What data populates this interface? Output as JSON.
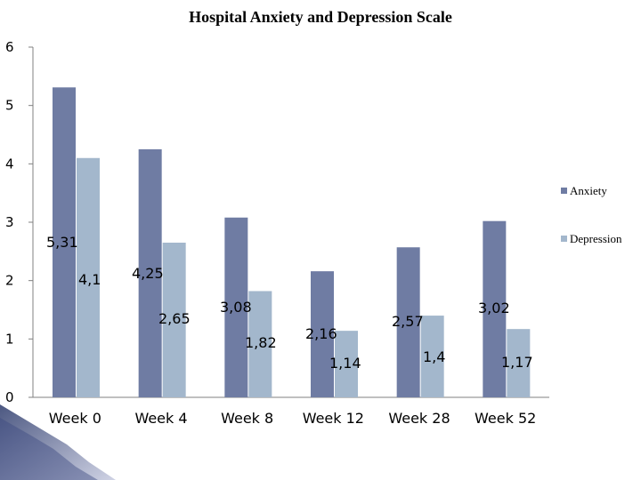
{
  "chart_data": {
    "type": "bar",
    "title": "Hospital Anxiety and Depression Scale",
    "categories": [
      "Week 0",
      "Week 4",
      "Week 8",
      "Week 12",
      "Week 28",
      "Week 52"
    ],
    "series": [
      {
        "name": "Anxiety",
        "values": [
          5.31,
          4.25,
          3.08,
          2.16,
          2.57,
          3.02
        ],
        "color": "#6f7ca3"
      },
      {
        "name": "Depression",
        "values": [
          4.1,
          2.65,
          1.82,
          1.14,
          1.4,
          1.17
        ],
        "color": "#a3b7cc"
      }
    ],
    "data_labels": [
      [
        "5,31",
        "4,25",
        "3,08",
        "2,16",
        "2,57",
        "3,02"
      ],
      [
        "4,1",
        "2,65",
        "1,82",
        "1,14",
        "1,4",
        "1,17"
      ]
    ],
    "yticks": [
      "0",
      "1",
      "2",
      "3",
      "4",
      "5",
      "6"
    ],
    "ylim": [
      0,
      6
    ],
    "grid": false,
    "legend_position": "right"
  },
  "colors": {
    "axis": "#808080",
    "corner_dark": "#2c3a6b",
    "corner_light": "#c7cbe0"
  }
}
